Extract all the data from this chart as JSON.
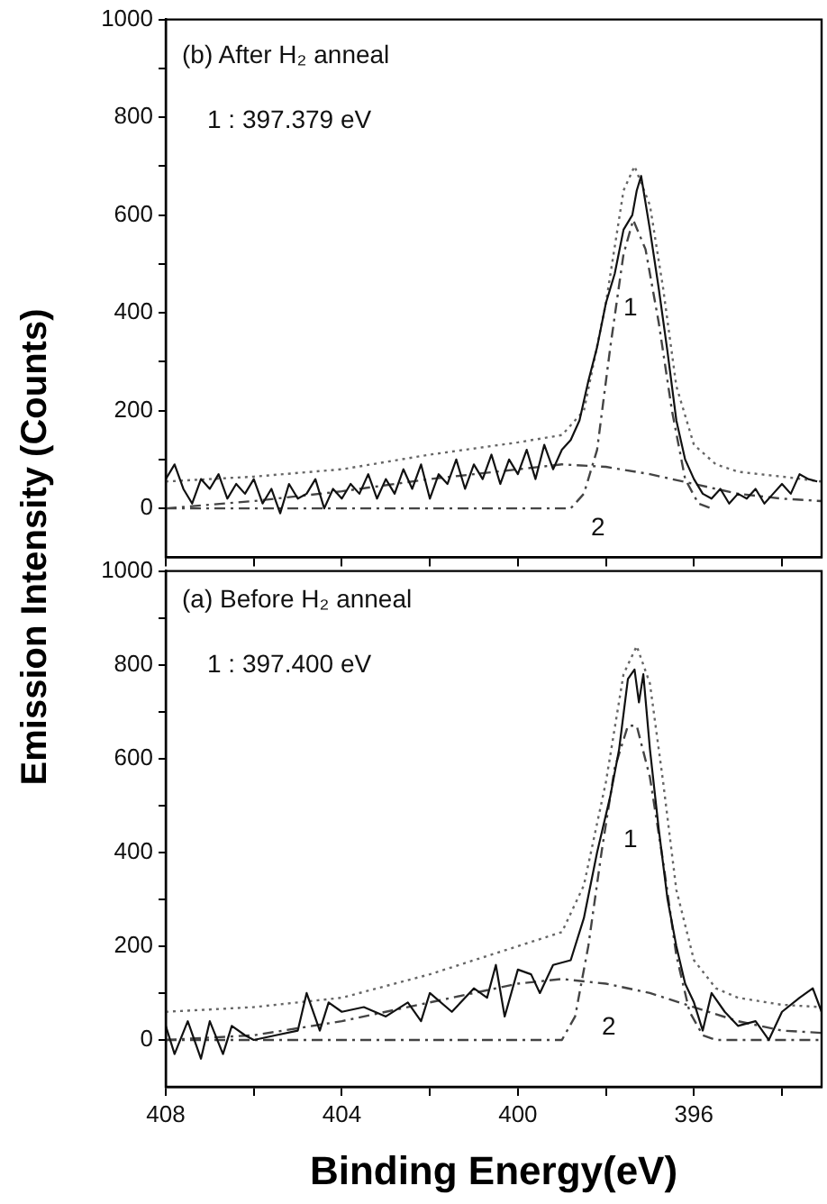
{
  "chart_data": [
    {
      "type": "line",
      "ylabel": "Emission Intensity (Counts)",
      "xlim": [
        408,
        393.1
      ],
      "ylim": [
        -100,
        1000
      ],
      "xticks": [
        {
          "value": 408,
          "label": null
        },
        {
          "value": 406,
          "label": null
        },
        {
          "value": 404,
          "label": null
        },
        {
          "value": 402,
          "label": null
        },
        {
          "value": 400,
          "label": null
        },
        {
          "value": 398,
          "label": null
        },
        {
          "value": 396,
          "label": null
        },
        {
          "value": 394,
          "label": null
        }
      ],
      "yticks": [
        0,
        {
          "value": 100,
          "label": null
        },
        200,
        {
          "value": 300,
          "label": null
        },
        400,
        {
          "value": 500,
          "label": null
        },
        600,
        {
          "value": 700,
          "label": null
        },
        800,
        {
          "value": 900,
          "label": null
        },
        1000
      ],
      "tick_labels": "y",
      "grid": false,
      "legend": false,
      "marker": "none",
      "annotations": [
        "(b) After H₂ anneal",
        "1 : 397.379 eV",
        "1",
        "2"
      ],
      "series": [
        {
          "color": "#111111",
          "line_style": "solid",
          "x": [
            408,
            407.8,
            407.6,
            407.4,
            407.2,
            407,
            406.8,
            406.6,
            406.4,
            406.2,
            406,
            405.8,
            405.6,
            405.4,
            405.2,
            405,
            404.8,
            404.6,
            404.4,
            404.2,
            404,
            403.8,
            403.6,
            403.4,
            403.2,
            403,
            402.8,
            402.6,
            402.4,
            402.2,
            402,
            401.8,
            401.6,
            401.4,
            401.2,
            401,
            400.8,
            400.6,
            400.4,
            400.2,
            400,
            399.8,
            399.6,
            399.4,
            399.2,
            399,
            398.8,
            398.6,
            398.4,
            398.2,
            398,
            397.8,
            397.6,
            397.4,
            397.3,
            397.2,
            397,
            396.8,
            396.6,
            396.4,
            396.2,
            396,
            395.8,
            395.6,
            395.4,
            395.2,
            395,
            394.8,
            394.6,
            394.4,
            394.2,
            394,
            393.8,
            393.6,
            393.4,
            393.2
          ],
          "values": [
            60,
            90,
            40,
            10,
            60,
            40,
            70,
            20,
            50,
            30,
            60,
            10,
            40,
            -10,
            50,
            20,
            30,
            60,
            0,
            40,
            20,
            50,
            30,
            70,
            20,
            60,
            30,
            80,
            40,
            90,
            20,
            70,
            50,
            100,
            40,
            90,
            60,
            110,
            50,
            100,
            70,
            120,
            60,
            130,
            80,
            120,
            140,
            180,
            260,
            330,
            420,
            480,
            570,
            600,
            650,
            680,
            570,
            450,
            320,
            180,
            100,
            60,
            30,
            20,
            40,
            10,
            30,
            20,
            40,
            10,
            30,
            50,
            30,
            70,
            60,
            55
          ]
        },
        {
          "color": "#666666",
          "line_style": "dotted",
          "x": [
            408,
            406,
            404,
            402,
            400,
            399,
            398.5,
            398,
            397.6,
            397.35,
            397,
            396.7,
            396.4,
            396,
            395.5,
            395,
            394,
            393.1
          ],
          "values": [
            55,
            65,
            80,
            110,
            135,
            150,
            200,
            420,
            650,
            700,
            620,
            450,
            250,
            130,
            90,
            75,
            65,
            55
          ]
        },
        {
          "color": "#444444",
          "line_style": "dashed",
          "x": [
            408,
            400,
            398.8,
            398.5,
            398.2,
            397.9,
            397.6,
            397.38,
            397.1,
            396.8,
            396.5,
            396.2,
            395.9,
            395.6
          ],
          "values": [
            0,
            0,
            0,
            30,
            120,
            330,
            520,
            590,
            530,
            380,
            200,
            60,
            10,
            0
          ]
        },
        {
          "color": "#444444",
          "line_style": "dashed",
          "x": [
            408,
            406,
            404,
            402,
            400,
            399,
            398,
            397,
            396,
            395,
            394,
            393.1
          ],
          "values": [
            0,
            15,
            35,
            60,
            80,
            90,
            85,
            70,
            50,
            30,
            20,
            15
          ]
        }
      ]
    },
    {
      "type": "line",
      "xlabel": "Binding Energy(eV)",
      "xlim": [
        408,
        393.1
      ],
      "ylim": [
        -100,
        1000
      ],
      "xticks": [
        408,
        {
          "value": 406,
          "label": null
        },
        404,
        {
          "value": 402,
          "label": null
        },
        400,
        {
          "value": 398,
          "label": null
        },
        396,
        {
          "value": 394,
          "label": null
        }
      ],
      "yticks": [
        0,
        {
          "value": 100,
          "label": null
        },
        200,
        {
          "value": 300,
          "label": null
        },
        400,
        {
          "value": 500,
          "label": null
        },
        600,
        {
          "value": 700,
          "label": null
        },
        800,
        {
          "value": 900,
          "label": null
        },
        1000
      ],
      "grid": false,
      "legend": false,
      "marker": "none",
      "annotations": [
        "(a) Before H₂ anneal",
        "1 : 397.400 eV",
        "1",
        "2"
      ],
      "series": [
        {
          "color": "#111111",
          "line_style": "solid",
          "x": [
            408,
            407.8,
            407.5,
            407.2,
            407,
            406.7,
            406.5,
            406.2,
            406,
            405.5,
            405,
            404.8,
            404.5,
            404.3,
            404,
            403.5,
            403,
            402.5,
            402.2,
            402,
            401.5,
            401,
            400.7,
            400.5,
            400.3,
            400,
            399.7,
            399.5,
            399.2,
            398.8,
            398.5,
            398.2,
            397.9,
            397.7,
            397.5,
            397.35,
            397.25,
            397.15,
            397,
            396.8,
            396.6,
            396.4,
            396.2,
            396,
            395.8,
            395.6,
            395.3,
            395,
            394.6,
            394.3,
            394,
            393.6,
            393.3,
            393.1
          ],
          "values": [
            30,
            -30,
            40,
            -40,
            40,
            -30,
            30,
            10,
            0,
            10,
            20,
            100,
            20,
            80,
            60,
            70,
            50,
            80,
            40,
            100,
            60,
            110,
            90,
            160,
            50,
            150,
            140,
            100,
            160,
            170,
            260,
            400,
            520,
            620,
            770,
            790,
            720,
            780,
            620,
            450,
            300,
            200,
            120,
            80,
            20,
            100,
            60,
            30,
            40,
            0,
            60,
            90,
            110,
            60
          ]
        },
        {
          "color": "#666666",
          "line_style": "dotted",
          "x": [
            408,
            406,
            404,
            402,
            400,
            399,
            398.5,
            398,
            397.6,
            397.3,
            397,
            396.7,
            396.4,
            396,
            395.5,
            395,
            394,
            393.1
          ],
          "values": [
            60,
            70,
            90,
            140,
            200,
            230,
            330,
            550,
            780,
            840,
            760,
            550,
            320,
            170,
            110,
            90,
            75,
            70
          ]
        },
        {
          "color": "#444444",
          "line_style": "dashed",
          "x": [
            408,
            399,
            398.7,
            398.4,
            398.1,
            397.8,
            397.5,
            397.3,
            397,
            396.7,
            396.4,
            396.1,
            395.8,
            395.5,
            393.1
          ],
          "values": [
            0,
            0,
            50,
            200,
            400,
            580,
            670,
            670,
            560,
            380,
            180,
            60,
            10,
            0,
            0
          ]
        },
        {
          "color": "#444444",
          "line_style": "dashed",
          "x": [
            408,
            406,
            404,
            402,
            400,
            399,
            398,
            397,
            396,
            395,
            394,
            393.1
          ],
          "values": [
            0,
            10,
            40,
            80,
            120,
            130,
            120,
            100,
            70,
            40,
            20,
            15
          ]
        }
      ]
    }
  ]
}
